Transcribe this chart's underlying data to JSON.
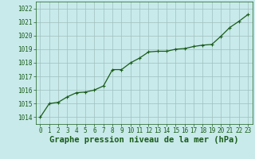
{
  "x": [
    0,
    1,
    2,
    3,
    4,
    5,
    6,
    7,
    8,
    9,
    10,
    11,
    12,
    13,
    14,
    15,
    16,
    17,
    18,
    19,
    20,
    21,
    22,
    23
  ],
  "y": [
    1014.0,
    1015.0,
    1015.1,
    1015.5,
    1015.8,
    1015.85,
    1016.0,
    1016.3,
    1017.5,
    1017.5,
    1018.0,
    1018.35,
    1018.8,
    1018.85,
    1018.85,
    1019.0,
    1019.05,
    1019.2,
    1019.3,
    1019.35,
    1019.95,
    1020.6,
    1021.05,
    1021.55
  ],
  "ylim": [
    1013.5,
    1022.5
  ],
  "xlim": [
    -0.5,
    23.5
  ],
  "yticks": [
    1014,
    1015,
    1016,
    1017,
    1018,
    1019,
    1020,
    1021,
    1022
  ],
  "xticks": [
    0,
    1,
    2,
    3,
    4,
    5,
    6,
    7,
    8,
    9,
    10,
    11,
    12,
    13,
    14,
    15,
    16,
    17,
    18,
    19,
    20,
    21,
    22,
    23
  ],
  "line_color": "#1a5c1a",
  "marker": "P",
  "marker_size": 2.8,
  "line_width": 0.9,
  "bg_color": "#c8eaea",
  "grid_color": "#a0c0c0",
  "xlabel": "Graphe pression niveau de la mer (hPa)",
  "xlabel_color": "#1a5c1a",
  "tick_color": "#1a5c1a",
  "tick_label_fontsize": 5.5,
  "xlabel_fontsize": 7.5,
  "xlabel_bold": true
}
